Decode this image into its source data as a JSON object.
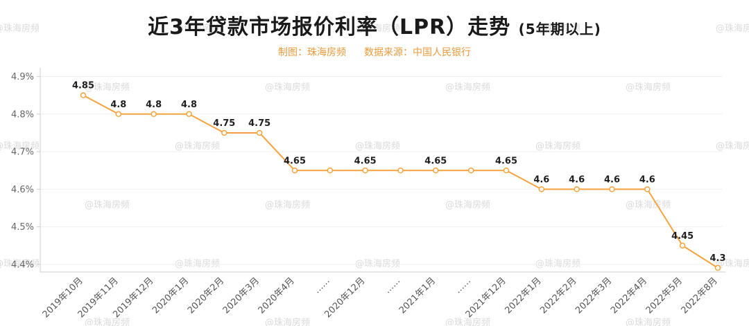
{
  "watermark": {
    "text": "@珠海房频",
    "color": "#dadada"
  },
  "header": {
    "title_main": "近3年贷款市场报价利率（LPR）走势",
    "title_paren": "(5年期以上)",
    "credit": "制图：珠海房频",
    "source": "数据来源：中国人民银行"
  },
  "chart_data": {
    "type": "line",
    "title": "近3年贷款市场报价利率（LPR）走势（5年期以上）",
    "xlabel": "",
    "ylabel": "",
    "legend": "none",
    "grid": true,
    "line_color": "#f6a23c",
    "marker": "hollow-circle",
    "ylim": [
      4.4,
      4.9
    ],
    "categories": [
      "2019年10月",
      "2019年11月",
      "2019年12月",
      "2020年1月",
      "2020年2月",
      "2020年3月",
      "2020年4月",
      "……",
      "2020年12月",
      "……",
      "2021年1月",
      "……",
      "2021年12月",
      "2022年1月",
      "2022年2月",
      "2022年3月",
      "2022年4月",
      "2022年5月",
      "2022年8月"
    ],
    "values": [
      4.85,
      4.8,
      4.8,
      4.8,
      4.75,
      4.75,
      4.65,
      4.65,
      4.65,
      4.65,
      4.65,
      4.65,
      4.65,
      4.6,
      4.6,
      4.6,
      4.6,
      4.45,
      4.3
    ],
    "point_labels": [
      "4.85",
      "4.8",
      "4.8",
      "4.8",
      "4.75",
      "4.75",
      "4.65",
      "",
      "4.65",
      "",
      "4.65",
      "",
      "4.65",
      "4.6",
      "4.6",
      "4.6",
      "4.6",
      "4.45",
      "4.3"
    ],
    "y_ticks": [
      {
        "label": "4.9%",
        "value": 4.9
      },
      {
        "label": "4.8%",
        "value": 4.8
      },
      {
        "label": "4.7%",
        "value": 4.7
      },
      {
        "label": "4.6%",
        "value": 4.6
      },
      {
        "label": "4.5%",
        "value": 4.5
      },
      {
        "label": "4.4%",
        "value": 4.4
      }
    ]
  }
}
